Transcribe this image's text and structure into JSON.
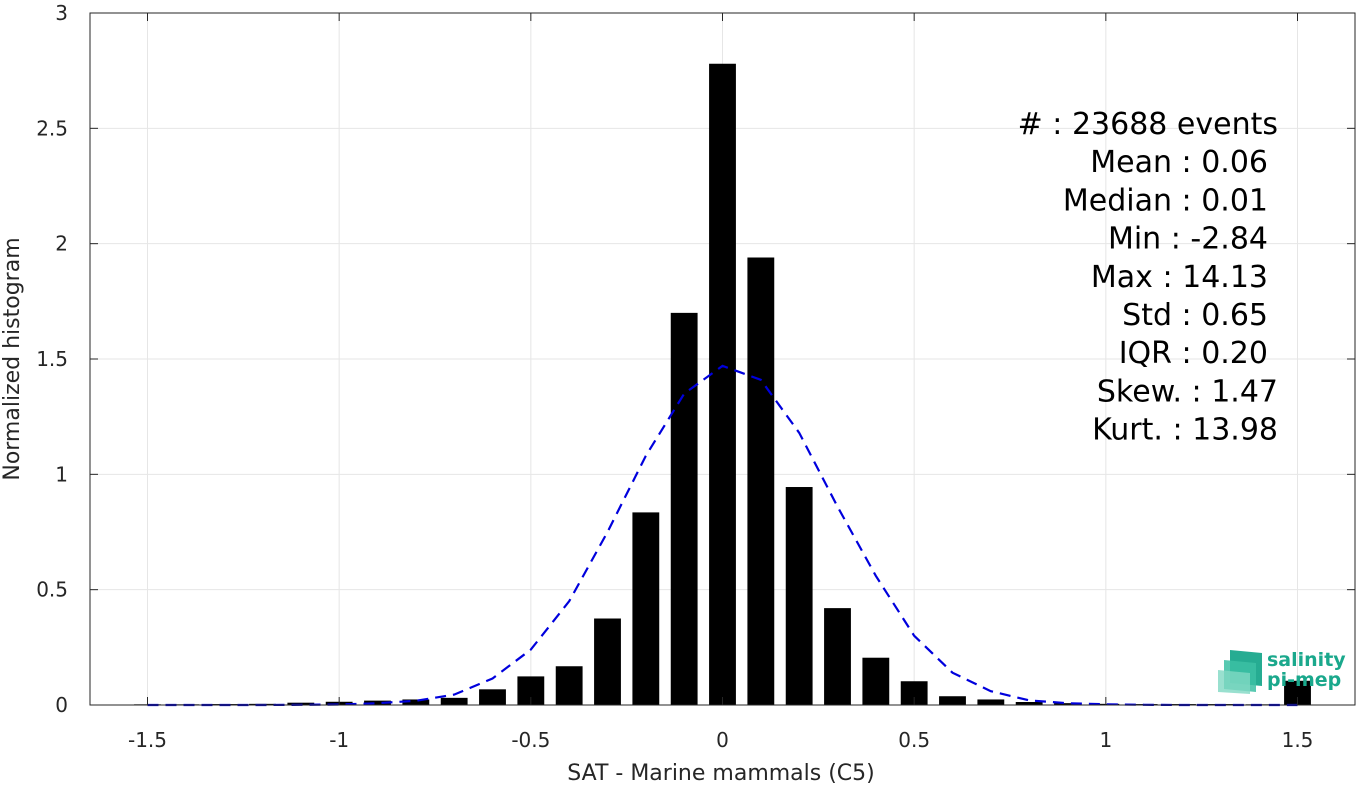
{
  "chart_data": {
    "type": "bar",
    "xlabel": "SAT - Marine mammals (C5)",
    "ylabel": "Normalized histogram",
    "xlim": [
      -1.65,
      1.65
    ],
    "ylim": [
      0,
      3
    ],
    "grid": true,
    "x_ticks": [
      -1.5,
      -1,
      -0.5,
      0,
      0.5,
      1,
      1.5
    ],
    "x_tick_labels": [
      "-1.5",
      "-1",
      "-0.5",
      "0",
      "0.5",
      "1",
      "1.5"
    ],
    "y_ticks": [
      0,
      0.5,
      1,
      1.5,
      2,
      2.5,
      3
    ],
    "y_tick_labels": [
      "0",
      "0.5",
      "1",
      "1.5",
      "2",
      "2.5",
      "3"
    ],
    "bar_width": 0.07,
    "bar_color": "#000000",
    "bars": {
      "x": [
        -1.5,
        -1.4,
        -1.3,
        -1.2,
        -1.1,
        -1.0,
        -0.9,
        -0.8,
        -0.7,
        -0.6,
        -0.5,
        -0.4,
        -0.3,
        -0.2,
        -0.1,
        0.0,
        0.1,
        0.2,
        0.3,
        0.4,
        0.5,
        0.6,
        0.7,
        0.8,
        0.9,
        1.0,
        1.1,
        1.2,
        1.3,
        1.4,
        1.5
      ],
      "values": [
        0.003,
        0.003,
        0.004,
        0.005,
        0.01,
        0.014,
        0.019,
        0.024,
        0.031,
        0.068,
        0.124,
        0.168,
        0.375,
        0.835,
        1.7,
        2.78,
        1.94,
        0.945,
        0.42,
        0.205,
        0.103,
        0.038,
        0.024,
        0.013,
        0.008,
        0.005,
        0.004,
        0.004,
        0.004,
        0.003,
        0.105
      ]
    },
    "fit_curve": {
      "style": "dashed",
      "color": "#0000dd",
      "x": [
        -1.5,
        -1.4,
        -1.3,
        -1.2,
        -1.1,
        -1.0,
        -0.9,
        -0.8,
        -0.7,
        -0.6,
        -0.5,
        -0.4,
        -0.3,
        -0.2,
        -0.1,
        0.0,
        0.1,
        0.2,
        0.3,
        0.4,
        0.5,
        0.6,
        0.7,
        0.8,
        0.9,
        1.0,
        1.1,
        1.2,
        1.3,
        1.4,
        1.5
      ],
      "y": [
        0.0,
        0.0,
        0.0,
        0.0,
        0.001,
        0.002,
        0.008,
        0.018,
        0.045,
        0.115,
        0.24,
        0.45,
        0.75,
        1.08,
        1.35,
        1.47,
        1.41,
        1.18,
        0.86,
        0.56,
        0.3,
        0.14,
        0.06,
        0.02,
        0.008,
        0.003,
        0.001,
        0.0,
        0.0,
        0.0,
        0.0
      ]
    },
    "annotations": [
      "#  : 23688 events",
      "Mean : 0.06",
      "Median : 0.01",
      "Min : -2.84",
      "Max : 14.13",
      "Std : 0.65",
      "IQR : 0.20",
      "Skew. : 1.47",
      "Kurt. : 13.98"
    ]
  },
  "logo": {
    "line1": "salinity",
    "line2": "pi-mep",
    "color": "#1aa88c"
  }
}
